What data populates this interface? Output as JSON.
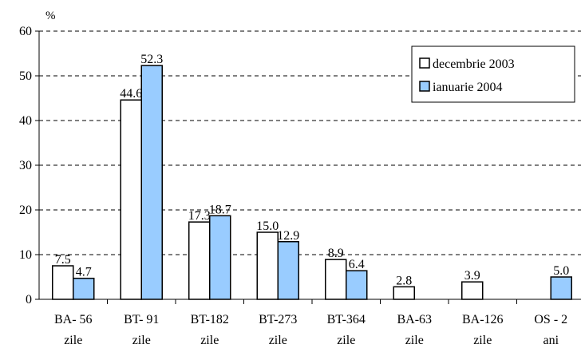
{
  "chart_data": {
    "type": "bar",
    "ylabel": "%",
    "ylim": [
      0,
      60
    ],
    "yticks": [
      0,
      10,
      20,
      30,
      40,
      50,
      60
    ],
    "grid": true,
    "grid_style": "dashed",
    "legend_position": "top-right",
    "categories": [
      [
        "BA- 56",
        "zile"
      ],
      [
        "BT- 91",
        "zile"
      ],
      [
        "BT-182",
        "zile"
      ],
      [
        "BT-273",
        "zile"
      ],
      [
        "BT-364",
        "zile"
      ],
      [
        "BA-63",
        "zile"
      ],
      [
        "BA-126",
        "zile"
      ],
      [
        "OS - 2",
        "ani"
      ]
    ],
    "series": [
      {
        "name": "decembrie 2003",
        "color": "#ffffff",
        "values": [
          7.5,
          44.6,
          17.3,
          15.0,
          8.9,
          2.8,
          3.9,
          null
        ],
        "labels": [
          "7.5",
          "44.6",
          "17.3",
          "15.0",
          "8.9",
          "2.8",
          "3.9",
          ""
        ]
      },
      {
        "name": "ianuarie 2004",
        "color": "#99ccff",
        "values": [
          4.7,
          52.3,
          18.7,
          12.9,
          6.4,
          null,
          null,
          5.0
        ],
        "labels": [
          "4.7",
          "52.3",
          "18.7",
          "12.9",
          "6.4",
          "",
          "",
          "5.0"
        ]
      }
    ]
  }
}
